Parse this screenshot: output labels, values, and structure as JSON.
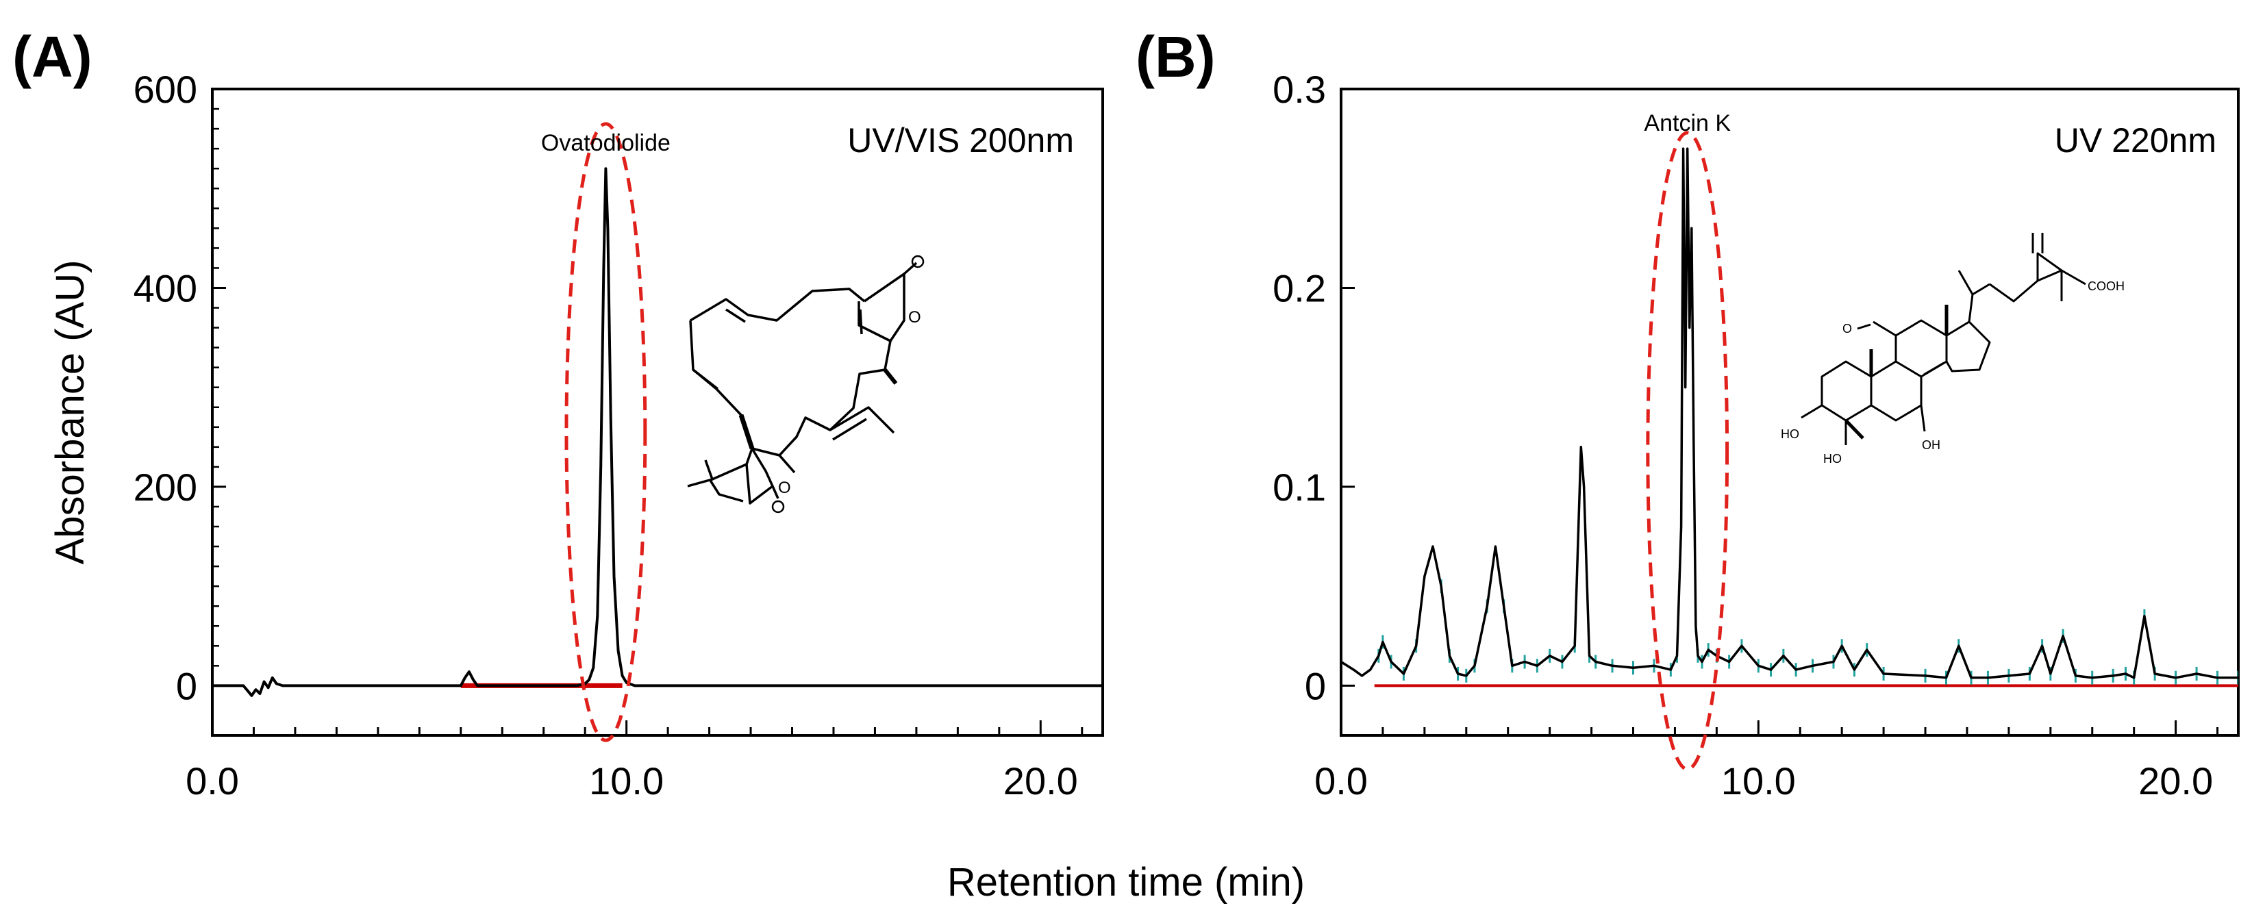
{
  "figure": {
    "shared_xlabel": "Retention time (min)",
    "shared_ylabel": "Absorbance (AU)"
  },
  "chart_data": [
    {
      "type": "line",
      "panel_label": "(A)",
      "detector": "UV/VIS 200nm",
      "xlabel": "Retention time (min)",
      "ylabel": "Absorbance (AU)",
      "xlim": [
        0,
        21.5
      ],
      "ylim": [
        -50,
        600
      ],
      "xticks": [
        0,
        10,
        20
      ],
      "xtick_labels": [
        "0.0",
        "10.0",
        "20.0"
      ],
      "yticks": [
        0,
        200,
        400,
        600
      ],
      "ytick_labels": [
        "0",
        "200",
        "400",
        "600"
      ],
      "x_minor_step": 1,
      "y_minor_step": 20,
      "annotation": {
        "label": "Ovatodiolide",
        "x": 9.5,
        "y": 520
      },
      "highlight_ellipse": {
        "cx": 9.5,
        "cy": 255,
        "rx": 0.95,
        "ry": 310
      },
      "structure": "Ovatodiolide",
      "series": [
        {
          "name": "chromatogram",
          "color": "#000000",
          "x": [
            0,
            0.75,
            0.85,
            0.95,
            1.05,
            1.15,
            1.25,
            1.35,
            1.45,
            1.55,
            1.7,
            2.5,
            6.0,
            6.1,
            6.2,
            6.3,
            6.4,
            6.5,
            7.0,
            8.0,
            8.8,
            9.0,
            9.1,
            9.2,
            9.3,
            9.38,
            9.45,
            9.5,
            9.55,
            9.62,
            9.7,
            9.8,
            9.9,
            10.0,
            10.2,
            11,
            15,
            21.5
          ],
          "y": [
            0,
            0,
            -5,
            -10,
            -4,
            -8,
            4,
            -2,
            8,
            2,
            0,
            0,
            0,
            8,
            14,
            6,
            0,
            0,
            0,
            0,
            0,
            2,
            6,
            18,
            70,
            220,
            420,
            520,
            460,
            270,
            110,
            35,
            10,
            3,
            0,
            0,
            0,
            0
          ]
        },
        {
          "name": "baseline",
          "color": "#cc0000",
          "x": [
            6.0,
            6.5,
            7.4,
            8.5,
            9.2,
            9.9
          ],
          "y": [
            0,
            0,
            0,
            0,
            0,
            0
          ]
        }
      ]
    },
    {
      "type": "line",
      "panel_label": "(B)",
      "detector": "UV 220nm",
      "xlabel": "Retention time (min)",
      "ylabel": "",
      "xlim": [
        0,
        21.5
      ],
      "ylim": [
        -0.025,
        0.3
      ],
      "xticks": [
        0,
        10,
        20
      ],
      "xtick_labels": [
        "0.0",
        "10.0",
        "20.0"
      ],
      "yticks": [
        0,
        0.1,
        0.2,
        0.3
      ],
      "ytick_labels": [
        "0",
        "0.1",
        "0.2",
        "0.3"
      ],
      "x_minor_step": 1,
      "annotation": {
        "label": "Antcin K",
        "x": 8.3,
        "y": 0.27
      },
      "highlight_ellipse": {
        "cx": 8.3,
        "cy": 0.118,
        "rx": 0.95,
        "ry": 0.16
      },
      "structure": "Antcin K",
      "series": [
        {
          "name": "chromatogram",
          "color": "#000000",
          "x": [
            0,
            0.3,
            0.5,
            0.7,
            0.9,
            1.0,
            1.2,
            1.5,
            1.8,
            2.0,
            2.2,
            2.4,
            2.6,
            2.8,
            3.0,
            3.2,
            3.5,
            3.7,
            3.9,
            4.1,
            4.4,
            4.7,
            5.0,
            5.3,
            5.6,
            5.75,
            5.82,
            5.88,
            5.95,
            6.1,
            6.5,
            7.0,
            7.5,
            7.9,
            8.05,
            8.15,
            8.2,
            8.25,
            8.3,
            8.35,
            8.4,
            8.45,
            8.5,
            8.55,
            8.65,
            8.8,
            9.0,
            9.3,
            9.6,
            10.0,
            10.3,
            10.6,
            10.9,
            11.3,
            11.8,
            12.0,
            12.3,
            12.6,
            13.0,
            14.0,
            14.5,
            14.8,
            15.1,
            15.5,
            16.0,
            16.5,
            16.8,
            17.0,
            17.3,
            17.6,
            18.0,
            18.5,
            18.8,
            19.0,
            19.25,
            19.5,
            20.0,
            20.5,
            21.0,
            21.5
          ],
          "y": [
            0.012,
            0.008,
            0.005,
            0.008,
            0.015,
            0.022,
            0.012,
            0.006,
            0.02,
            0.055,
            0.07,
            0.05,
            0.015,
            0.006,
            0.005,
            0.01,
            0.04,
            0.07,
            0.04,
            0.01,
            0.012,
            0.01,
            0.015,
            0.012,
            0.02,
            0.12,
            0.1,
            0.06,
            0.015,
            0.012,
            0.01,
            0.009,
            0.01,
            0.008,
            0.015,
            0.08,
            0.27,
            0.15,
            0.27,
            0.18,
            0.23,
            0.12,
            0.03,
            0.015,
            0.012,
            0.018,
            0.015,
            0.012,
            0.02,
            0.01,
            0.008,
            0.015,
            0.008,
            0.01,
            0.012,
            0.02,
            0.008,
            0.018,
            0.006,
            0.005,
            0.004,
            0.02,
            0.004,
            0.004,
            0.005,
            0.006,
            0.02,
            0.006,
            0.025,
            0.005,
            0.004,
            0.005,
            0.006,
            0.004,
            0.035,
            0.006,
            0.004,
            0.006,
            0.004,
            0.004
          ]
        },
        {
          "name": "baseline",
          "color": "#cc0000",
          "x": [
            0.8,
            21.5
          ],
          "y": [
            0,
            0
          ]
        }
      ]
    }
  ]
}
